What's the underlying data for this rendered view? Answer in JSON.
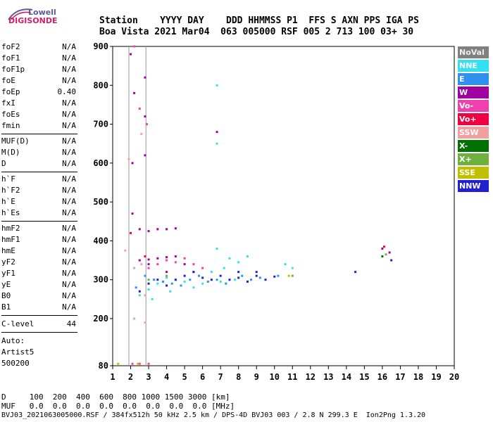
{
  "logo": {
    "line1": "Lowell",
    "line2": "DIGISONDE"
  },
  "header": {
    "labels": "Station    YYYY DAY    DDD HHMMSS P1  FFS S AXN PPS IGA PS",
    "values": "Boa Vista 2021 Mar04  063 005000 RSF 005 2 713 100 03+ 30"
  },
  "sidebar": {
    "group1": [
      {
        "k": "foF2",
        "v": "N/A"
      },
      {
        "k": "foF1",
        "v": "N/A"
      },
      {
        "k": "foF1p",
        "v": "N/A"
      },
      {
        "k": "foE",
        "v": "N/A"
      },
      {
        "k": "foEp",
        "v": "0.40"
      },
      {
        "k": "fxI",
        "v": "N/A"
      },
      {
        "k": "foEs",
        "v": "N/A"
      },
      {
        "k": "fmin",
        "v": "N/A"
      }
    ],
    "group2": [
      {
        "k": "MUF(D)",
        "v": "N/A"
      },
      {
        "k": "M(D)",
        "v": "N/A"
      },
      {
        "k": "D",
        "v": "N/A"
      }
    ],
    "group3": [
      {
        "k": "h`F",
        "v": "N/A"
      },
      {
        "k": "h`F2",
        "v": "N/A"
      },
      {
        "k": "h`E",
        "v": "N/A"
      },
      {
        "k": "h`Es",
        "v": "N/A"
      }
    ],
    "group4": [
      {
        "k": "hmF2",
        "v": "N/A"
      },
      {
        "k": "hmF1",
        "v": "N/A"
      },
      {
        "k": "hmE",
        "v": "N/A"
      },
      {
        "k": "yF2",
        "v": "N/A"
      },
      {
        "k": "yF1",
        "v": "N/A"
      },
      {
        "k": "yE",
        "v": "N/A"
      },
      {
        "k": "B0",
        "v": "N/A"
      },
      {
        "k": "B1",
        "v": "N/A"
      }
    ],
    "clevel": {
      "k": "C-level",
      "v": "44"
    },
    "auto": [
      "Auto:",
      "Artist5",
      "500200"
    ]
  },
  "legend": [
    {
      "label": "NoVal",
      "color": "#808080"
    },
    {
      "label": "NNE",
      "color": "#33e0f0"
    },
    {
      "label": "E",
      "color": "#3090f0"
    },
    {
      "label": "W",
      "color": "#a000a0"
    },
    {
      "label": "Vo-",
      "color": "#f040b0"
    },
    {
      "label": "Vo+",
      "color": "#f00040"
    },
    {
      "label": "SSW",
      "color": "#f0a0a0"
    },
    {
      "label": "X-",
      "color": "#007000"
    },
    {
      "label": "X+",
      "color": "#70b040"
    },
    {
      "label": "SSE",
      "color": "#c0c000"
    },
    {
      "label": "NNW",
      "color": "#2020d0"
    }
  ],
  "footer": {
    "line1": "D     100  200  400  600  800 1000 1500 3000 [km]",
    "line2": "MUF   0.0  0.0  0.0  0.0  0.0  0.0  0.0  0.0 [MHz]",
    "line3": "BVJ03_2021063005000.RSF / 384fx512h 50 kHz 2.5 km / DPS-4D BVJ03 003 / 2.8 N 299.3 E  Ion2Png 1.3.20"
  },
  "chart_data": {
    "type": "scatter",
    "xlim": [
      1,
      20
    ],
    "ylim": [
      80,
      900
    ],
    "x_ticks": [
      "1",
      "2",
      "3",
      "4",
      "5",
      "6",
      "7",
      "8",
      "9",
      "10",
      "11",
      "12",
      "13",
      "14",
      "15",
      "16",
      "17",
      "18",
      "19",
      "20"
    ],
    "y_ticks": [
      "80",
      "200",
      "300",
      "400",
      "500",
      "600",
      "700",
      "800",
      "900"
    ],
    "grid": false,
    "legend_position": "right",
    "series": [
      {
        "name": "NNE",
        "color": "#33e0f0",
        "points": [
          [
            2.5,
            260
          ],
          [
            3.0,
            275
          ],
          [
            3.5,
            290
          ],
          [
            4.0,
            305
          ],
          [
            4.5,
            300
          ],
          [
            5.0,
            295
          ],
          [
            5.5,
            280
          ],
          [
            6.0,
            290
          ],
          [
            6.5,
            320
          ],
          [
            6.8,
            380
          ],
          [
            7.2,
            330
          ],
          [
            7.5,
            355
          ],
          [
            8.0,
            345
          ],
          [
            8.5,
            360
          ],
          [
            3.2,
            250
          ],
          [
            4.2,
            270
          ],
          [
            6.8,
            800
          ],
          [
            6.8,
            650
          ],
          [
            10.6,
            340
          ],
          [
            11.0,
            330
          ],
          [
            7.0,
            295
          ],
          [
            7.8,
            300
          ]
        ]
      },
      {
        "name": "E",
        "color": "#3090f0",
        "points": [
          [
            2.3,
            280
          ],
          [
            2.8,
            310
          ],
          [
            3.3,
            300
          ],
          [
            3.8,
            295
          ],
          [
            4.3,
            290
          ],
          [
            4.8,
            285
          ],
          [
            5.3,
            300
          ],
          [
            5.8,
            310
          ],
          [
            6.3,
            295
          ],
          [
            6.8,
            300
          ],
          [
            7.3,
            290
          ],
          [
            8.2,
            310
          ],
          [
            8.7,
            300
          ],
          [
            9.2,
            305
          ],
          [
            10.2,
            310
          ]
        ]
      },
      {
        "name": "W",
        "color": "#a000a0",
        "points": [
          [
            2.0,
            880
          ],
          [
            2.2,
            780
          ],
          [
            2.8,
            820
          ],
          [
            2.8,
            720
          ],
          [
            2.8,
            620
          ],
          [
            2.1,
            470
          ],
          [
            2.1,
            600
          ],
          [
            2.5,
            430
          ],
          [
            3.0,
            425
          ],
          [
            3.5,
            430
          ],
          [
            4.0,
            430
          ],
          [
            4.5,
            432
          ],
          [
            2.5,
            350
          ],
          [
            3.0,
            352
          ],
          [
            3.5,
            355
          ],
          [
            4.0,
            358
          ],
          [
            4.5,
            360
          ],
          [
            5.0,
            340
          ],
          [
            5.5,
            320
          ],
          [
            3.0,
            340
          ],
          [
            4.0,
            320
          ],
          [
            6.8,
            680
          ],
          [
            16.0,
            380
          ],
          [
            16.4,
            370
          ]
        ]
      },
      {
        "name": "Vo-",
        "color": "#f040b0",
        "points": [
          [
            2.2,
            900
          ],
          [
            2.5,
            740
          ],
          [
            2.9,
            700
          ],
          [
            3.0,
            330
          ],
          [
            3.5,
            340
          ],
          [
            4.0,
            350
          ],
          [
            4.5,
            345
          ],
          [
            5.0,
            355
          ],
          [
            5.5,
            340
          ],
          [
            6.0,
            330
          ],
          [
            2.1,
            85
          ],
          [
            2.5,
            85
          ],
          [
            3.0,
            85
          ]
        ]
      },
      {
        "name": "Vo+",
        "color": "#f00040",
        "points": [
          [
            2.0,
            420
          ],
          [
            2.8,
            360
          ],
          [
            16.1,
            385
          ]
        ]
      },
      {
        "name": "SSW",
        "color": "#f0a0a0",
        "points": [
          [
            1.7,
            375
          ],
          [
            2.2,
            330
          ],
          [
            2.6,
            340
          ],
          [
            2.8,
            260
          ],
          [
            1.9,
            610
          ],
          [
            2.6,
            675
          ],
          [
            2.2,
            200
          ],
          [
            2.8,
            190
          ]
        ]
      },
      {
        "name": "X-",
        "color": "#007000",
        "points": [
          [
            16.0,
            360
          ]
        ]
      },
      {
        "name": "X+",
        "color": "#70b040",
        "points": [
          [
            3.0,
            300
          ],
          [
            4.0,
            310
          ],
          [
            16.2,
            365
          ],
          [
            11.0,
            310
          ]
        ]
      },
      {
        "name": "SSE",
        "color": "#c0c000",
        "points": [
          [
            1.3,
            85
          ],
          [
            2.4,
            85
          ],
          [
            10.8,
            310
          ]
        ]
      },
      {
        "name": "NNW",
        "color": "#2020d0",
        "points": [
          [
            2.5,
            270
          ],
          [
            3.0,
            290
          ],
          [
            3.5,
            300
          ],
          [
            4.0,
            285
          ],
          [
            4.5,
            300
          ],
          [
            5.0,
            310
          ],
          [
            5.5,
            320
          ],
          [
            6.0,
            305
          ],
          [
            6.5,
            300
          ],
          [
            7.0,
            310
          ],
          [
            7.5,
            300
          ],
          [
            8.0,
            305
          ],
          [
            8.5,
            295
          ],
          [
            9.0,
            310
          ],
          [
            9.5,
            300
          ],
          [
            10.0,
            308
          ],
          [
            8.0,
            320
          ],
          [
            9.0,
            320
          ],
          [
            14.5,
            320
          ],
          [
            16.5,
            350
          ]
        ]
      }
    ]
  }
}
